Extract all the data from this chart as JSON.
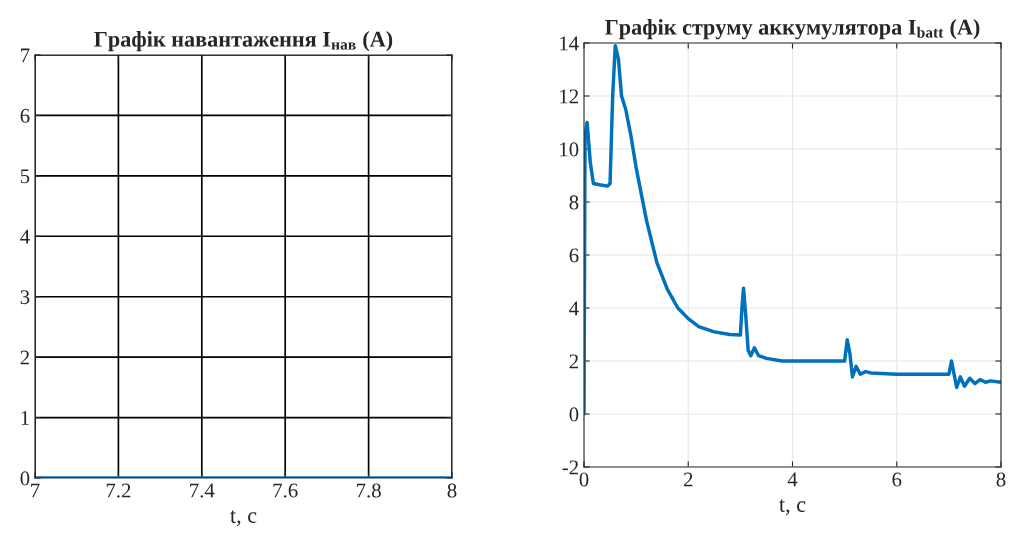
{
  "chart_data": [
    {
      "type": "line",
      "title": "Графік навантаження I$_{нав}$ (A)",
      "xlabel": "t, c",
      "xlim": [
        7,
        8
      ],
      "xticks": [
        7,
        7.2,
        7.4,
        7.6,
        7.8,
        8
      ],
      "ylim": [
        0,
        7
      ],
      "yticks": [
        0,
        1,
        2,
        3,
        4,
        5,
        6,
        7
      ],
      "grid": true,
      "series": [
        {
          "color": "#0072bd",
          "x": [
            7,
            8
          ],
          "values": [
            0,
            0
          ]
        }
      ]
    },
    {
      "type": "line",
      "title": "Графік струму аккумулятора I$_{batt}$ (A)",
      "xlabel": "t, c",
      "xlim": [
        0,
        8
      ],
      "xticks": [
        0,
        2,
        4,
        6,
        8
      ],
      "ylim": [
        -2,
        14
      ],
      "yticks": [
        -2,
        0,
        2,
        4,
        6,
        8,
        10,
        12,
        14
      ],
      "grid": true,
      "series": [
        {
          "color": "#0072bd",
          "x": [
            0,
            0.02,
            0.06,
            0.12,
            0.18,
            0.3,
            0.45,
            0.5,
            0.55,
            0.6,
            0.66,
            0.72,
            0.8,
            0.9,
            1.0,
            1.2,
            1.4,
            1.6,
            1.8,
            2.0,
            2.2,
            2.5,
            2.8,
            3.0,
            3.03,
            3.06,
            3.1,
            3.15,
            3.2,
            3.27,
            3.35,
            3.5,
            3.8,
            4.0,
            5.0,
            5.05,
            5.1,
            5.15,
            5.22,
            5.3,
            5.4,
            5.5,
            6.0,
            7.0,
            7.05,
            7.1,
            7.15,
            7.22,
            7.3,
            7.4,
            7.5,
            7.6,
            7.7,
            7.8,
            8.0
          ],
          "values": [
            0,
            10.5,
            11.0,
            9.5,
            8.7,
            8.65,
            8.6,
            8.7,
            12.0,
            13.9,
            13.4,
            12.0,
            11.5,
            10.5,
            9.3,
            7.3,
            5.7,
            4.7,
            4.0,
            3.6,
            3.3,
            3.1,
            3.0,
            2.98,
            4.0,
            4.75,
            3.8,
            2.4,
            2.2,
            2.5,
            2.2,
            2.1,
            2.0,
            2.0,
            2.0,
            2.8,
            2.3,
            1.4,
            1.8,
            1.5,
            1.6,
            1.55,
            1.5,
            1.5,
            2.0,
            1.5,
            1.0,
            1.4,
            1.05,
            1.35,
            1.15,
            1.3,
            1.2,
            1.25,
            1.2
          ]
        }
      ]
    }
  ]
}
